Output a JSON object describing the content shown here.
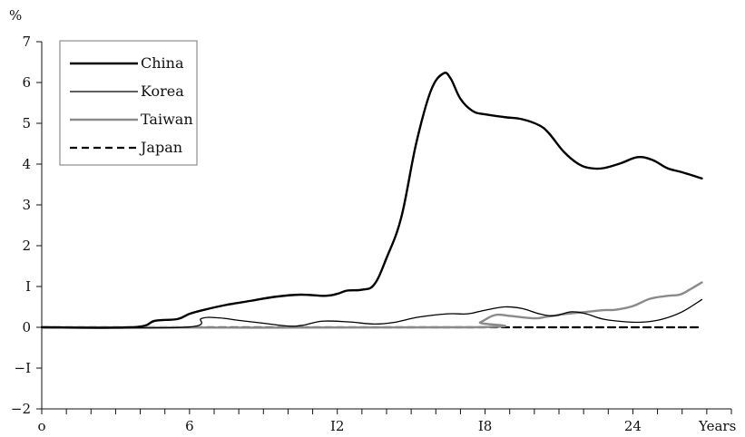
{
  "chart_data": {
    "type": "line",
    "title": "",
    "ylabel": "%",
    "xlabel": "Years",
    "xlim": [
      0,
      28
    ],
    "ylim": [
      -2,
      7
    ],
    "x_ticks": [
      0,
      6,
      12,
      18,
      24
    ],
    "x_tick_labels": [
      "o",
      "6",
      "I2",
      "I8",
      "24"
    ],
    "y_ticks": [
      -2,
      -1,
      0,
      1,
      2,
      3,
      4,
      5,
      6,
      7
    ],
    "y_tick_labels": [
      "−2",
      "−I",
      "0",
      "I",
      "2",
      "3",
      "4",
      "5",
      "6",
      "7"
    ],
    "grid": false,
    "legend_position": "top-left",
    "series": [
      {
        "name": "China",
        "color": "#000000",
        "style": "solid-thick",
        "points": [
          [
            0,
            0
          ],
          [
            3.7,
            0
          ],
          [
            4.6,
            0.16
          ],
          [
            5.5,
            0.2
          ],
          [
            6.0,
            0.33
          ],
          [
            6.6,
            0.43
          ],
          [
            7.5,
            0.55
          ],
          [
            8.5,
            0.65
          ],
          [
            9.5,
            0.75
          ],
          [
            10.5,
            0.8
          ],
          [
            11.5,
            0.77
          ],
          [
            12.0,
            0.82
          ],
          [
            12.4,
            0.9
          ],
          [
            13.0,
            0.92
          ],
          [
            13.5,
            1.05
          ],
          [
            14.0,
            1.7
          ],
          [
            14.6,
            2.7
          ],
          [
            15.2,
            4.5
          ],
          [
            15.8,
            5.8
          ],
          [
            16.3,
            6.22
          ],
          [
            16.6,
            6.1
          ],
          [
            17.0,
            5.6
          ],
          [
            17.5,
            5.3
          ],
          [
            18.0,
            5.22
          ],
          [
            18.8,
            5.15
          ],
          [
            19.5,
            5.1
          ],
          [
            20.2,
            4.95
          ],
          [
            20.6,
            4.75
          ],
          [
            21.2,
            4.3
          ],
          [
            21.8,
            4.0
          ],
          [
            22.3,
            3.9
          ],
          [
            22.8,
            3.9
          ],
          [
            23.5,
            4.02
          ],
          [
            24.2,
            4.17
          ],
          [
            24.8,
            4.1
          ],
          [
            25.4,
            3.9
          ],
          [
            26.0,
            3.8
          ],
          [
            26.8,
            3.65
          ]
        ]
      },
      {
        "name": "Korea",
        "color": "#000000",
        "style": "solid-thin",
        "points": [
          [
            0,
            0
          ],
          [
            5.8,
            0
          ],
          [
            6.5,
            0.22
          ],
          [
            7.2,
            0.23
          ],
          [
            8.0,
            0.17
          ],
          [
            9.0,
            0.1
          ],
          [
            10.0,
            0.03
          ],
          [
            10.6,
            0.05
          ],
          [
            11.4,
            0.15
          ],
          [
            12.5,
            0.13
          ],
          [
            13.5,
            0.08
          ],
          [
            14.3,
            0.12
          ],
          [
            15.3,
            0.25
          ],
          [
            16.5,
            0.33
          ],
          [
            17.3,
            0.33
          ],
          [
            18.0,
            0.42
          ],
          [
            18.8,
            0.5
          ],
          [
            19.5,
            0.46
          ],
          [
            20.2,
            0.33
          ],
          [
            20.8,
            0.28
          ],
          [
            21.5,
            0.38
          ],
          [
            22.1,
            0.33
          ],
          [
            22.8,
            0.2
          ],
          [
            23.8,
            0.13
          ],
          [
            24.5,
            0.13
          ],
          [
            25.2,
            0.2
          ],
          [
            26.0,
            0.38
          ],
          [
            26.8,
            0.68
          ]
        ]
      },
      {
        "name": "Taiwan",
        "color": "#8a8a8a",
        "style": "solid-thick",
        "points": [
          [
            0,
            0
          ],
          [
            17.3,
            0
          ],
          [
            17.8,
            0.12
          ],
          [
            18.4,
            0.3
          ],
          [
            19.0,
            0.28
          ],
          [
            20.0,
            0.22
          ],
          [
            20.5,
            0.26
          ],
          [
            21.3,
            0.33
          ],
          [
            22.0,
            0.37
          ],
          [
            22.8,
            0.42
          ],
          [
            23.3,
            0.43
          ],
          [
            24.0,
            0.52
          ],
          [
            24.7,
            0.7
          ],
          [
            25.4,
            0.77
          ],
          [
            25.9,
            0.8
          ],
          [
            26.3,
            0.92
          ],
          [
            26.8,
            1.1
          ]
        ]
      },
      {
        "name": "Japan",
        "color": "#000000",
        "style": "dashed",
        "points": [
          [
            0,
            0
          ],
          [
            26.8,
            0
          ]
        ]
      }
    ]
  }
}
